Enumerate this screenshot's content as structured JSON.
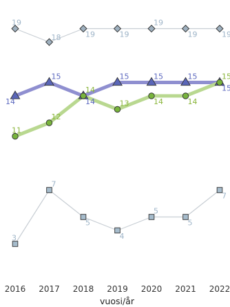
{
  "chart_data": {
    "type": "line",
    "x": [
      2016,
      2017,
      2018,
      2019,
      2020,
      2021,
      2022
    ],
    "xlabel": "vuosi/år",
    "ylabel": "",
    "grid": false,
    "series": [
      {
        "values": [
          19,
          18,
          19,
          19,
          19,
          19,
          19
        ],
        "marker": "diamond",
        "line_color": "#c8ced4",
        "marker_fill": "#9eb0bf",
        "label_color": "#9fb5c8"
      },
      {
        "values": [
          14,
          15,
          14,
          15,
          15,
          15,
          15
        ],
        "marker": "triangle",
        "line_color": "#8f8fd0",
        "marker_fill": "#5a66b8",
        "label_color": "#5c68bf"
      },
      {
        "values": [
          11,
          12,
          14,
          13,
          14,
          14,
          15
        ],
        "marker": "circle",
        "line_color": "#b9d890",
        "marker_fill": "#78b43c",
        "label_color": "#8ab53a"
      },
      {
        "values": [
          3,
          7,
          5,
          4,
          5,
          5,
          7
        ],
        "marker": "square",
        "line_color": "#c8ced4",
        "marker_fill": "#a6bccc",
        "label_color": "#9fb5c8"
      }
    ]
  }
}
